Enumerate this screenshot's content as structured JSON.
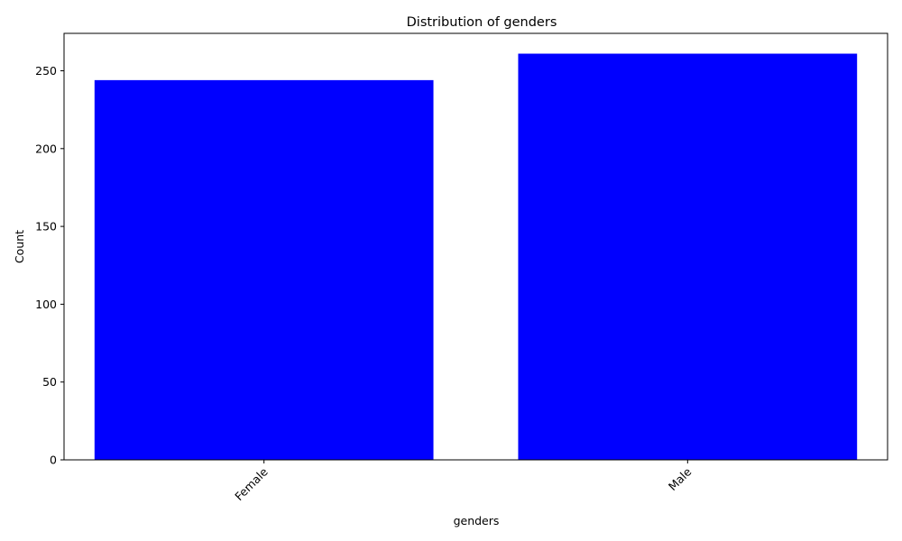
{
  "chart_data": {
    "type": "bar",
    "title": "Distribution of genders",
    "xlabel": "genders",
    "ylabel": "Count",
    "categories": [
      "Female",
      "Male"
    ],
    "values": [
      244,
      261
    ],
    "ylim": [
      0,
      274.05
    ],
    "yticks": [
      0,
      50,
      100,
      150,
      200,
      250
    ],
    "bar_color": "#0000ff",
    "grid": false,
    "legend": false,
    "xtick_rotation_deg": 45
  }
}
